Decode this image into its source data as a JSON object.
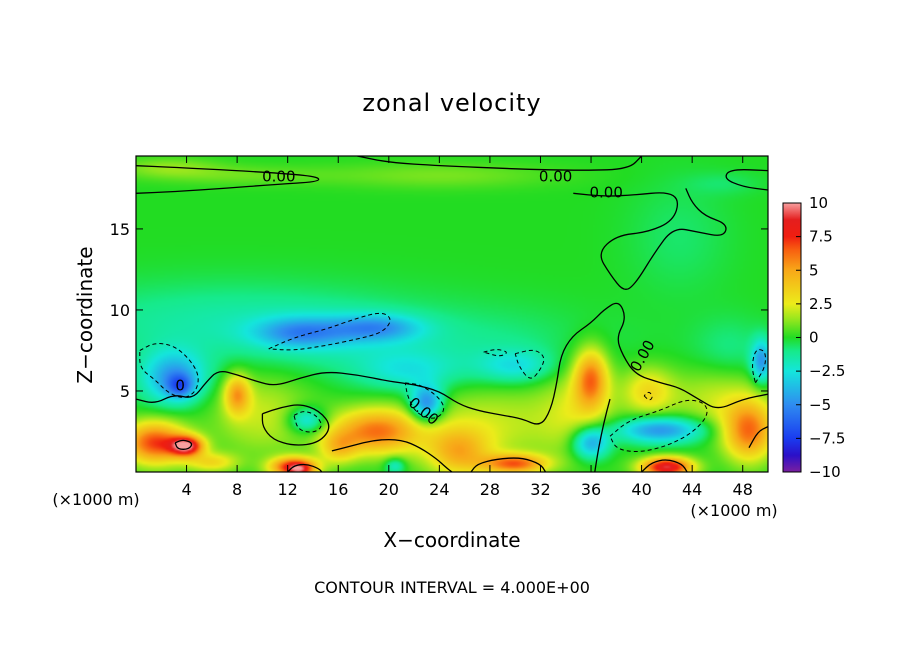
{
  "chart_data": {
    "type": "heatmap",
    "subtype": "filled-contour",
    "title": "zonal velocity",
    "xlabel": "X−coordinate",
    "ylabel": "Z−coordinate",
    "x_unit_left": "(×1000 m)",
    "x_unit_right": "(×1000 m)",
    "xlim": [
      0,
      50
    ],
    "ylim": [
      0,
      19.5
    ],
    "xticks": [
      {
        "value": 4,
        "label": "4"
      },
      {
        "value": 8,
        "label": "8"
      },
      {
        "value": 12,
        "label": "12"
      },
      {
        "value": 16,
        "label": "16"
      },
      {
        "value": 20,
        "label": "20"
      },
      {
        "value": 24,
        "label": "24"
      },
      {
        "value": 28,
        "label": "28"
      },
      {
        "value": 32,
        "label": "32"
      },
      {
        "value": 36,
        "label": "36"
      },
      {
        "value": 40,
        "label": "40"
      },
      {
        "value": 44,
        "label": "44"
      },
      {
        "value": 48,
        "label": "48"
      }
    ],
    "yticks": [
      {
        "value": 5,
        "label": "5"
      },
      {
        "value": 10,
        "label": "10"
      },
      {
        "value": 15,
        "label": "15"
      }
    ],
    "colorbar": {
      "range": [
        -10,
        10
      ],
      "ticks": [
        {
          "value": 10,
          "label": "10"
        },
        {
          "value": 7.5,
          "label": "7.5"
        },
        {
          "value": 5,
          "label": "5"
        },
        {
          "value": 2.5,
          "label": "2.5"
        },
        {
          "value": 0,
          "label": "0"
        },
        {
          "value": -2.5,
          "label": "−2.5"
        },
        {
          "value": -5,
          "label": "−5"
        },
        {
          "value": -7.5,
          "label": "−7.5"
        },
        {
          "value": -10,
          "label": "−10"
        }
      ],
      "stops": [
        {
          "value": -10,
          "color": "#7a1fa0"
        },
        {
          "value": -8.75,
          "color": "#2a10c8"
        },
        {
          "value": -7.5,
          "color": "#1a3cf0"
        },
        {
          "value": -5,
          "color": "#2f8cf0"
        },
        {
          "value": -2.5,
          "color": "#14e6dc"
        },
        {
          "value": -1,
          "color": "#16ea8a"
        },
        {
          "value": 0,
          "color": "#22dc22"
        },
        {
          "value": 1.25,
          "color": "#8ee61e"
        },
        {
          "value": 2.5,
          "color": "#ecec1a"
        },
        {
          "value": 5,
          "color": "#f8a818"
        },
        {
          "value": 6.5,
          "color": "#f86010"
        },
        {
          "value": 7.5,
          "color": "#f01e10"
        },
        {
          "value": 8.75,
          "color": "#e41e1e"
        },
        {
          "value": 10,
          "color": "#f8a0a0"
        }
      ]
    },
    "field_features": [
      {
        "x": 2.5,
        "z": 18.8,
        "sx": 4,
        "sz": 0.6,
        "v": 1.2
      },
      {
        "x": 8,
        "z": 18.3,
        "sx": 7,
        "sz": 0.6,
        "v": 0.8
      },
      {
        "x": 24,
        "z": 18.3,
        "sx": 9,
        "sz": 0.8,
        "v": 1
      },
      {
        "x": 43,
        "z": 14.5,
        "sx": 4,
        "sz": 3.5,
        "v": -0.7
      },
      {
        "x": 46.5,
        "z": 17.8,
        "sx": 3,
        "sz": 0.7,
        "v": -0.6
      },
      {
        "x": 3,
        "z": 5.8,
        "sx": 2.5,
        "sz": 1.6,
        "v": -4.5
      },
      {
        "x": 3.5,
        "z": 5.3,
        "sx": 1,
        "sz": 0.7,
        "v": -3.5
      },
      {
        "x": 13,
        "z": 8.6,
        "sx": 3.5,
        "sz": 0.9,
        "v": -3.5
      },
      {
        "x": 19,
        "z": 8.9,
        "sx": 3.5,
        "sz": 0.8,
        "v": -3.5
      },
      {
        "x": 16,
        "z": 8.3,
        "sx": 7,
        "sz": 1.8,
        "v": -1
      },
      {
        "x": 7,
        "z": 9.2,
        "sx": 14,
        "sz": 2.5,
        "v": -1.5
      },
      {
        "x": 23,
        "z": 4.2,
        "sx": 1.3,
        "sz": 1.1,
        "v": -5.5
      },
      {
        "x": 21.5,
        "z": 6.2,
        "sx": 4,
        "sz": 1.2,
        "v": -2
      },
      {
        "x": 30,
        "z": 6.5,
        "sx": 3,
        "sz": 1,
        "v": -2.2
      },
      {
        "x": 28,
        "z": 7.5,
        "sx": 10,
        "sz": 2.5,
        "v": -1
      },
      {
        "x": 13.5,
        "z": 3.2,
        "sx": 1.5,
        "sz": 0.8,
        "v": -3.5
      },
      {
        "x": 41.5,
        "z": 2.6,
        "sx": 3.5,
        "sz": 0.8,
        "v": -5
      },
      {
        "x": 36,
        "z": 1.8,
        "sx": 1.5,
        "sz": 1,
        "v": -5
      },
      {
        "x": 49.5,
        "z": 6.8,
        "sx": 0.8,
        "sz": 1.3,
        "v": -4.5
      },
      {
        "x": 47,
        "z": 7.5,
        "sx": 3,
        "sz": 2,
        "v": -1
      },
      {
        "x": 20.5,
        "z": 0.4,
        "sx": 0.8,
        "sz": 0.5,
        "v": -2.5
      },
      {
        "x": 1.5,
        "z": 1.8,
        "sx": 2.5,
        "sz": 1.3,
        "v": 7
      },
      {
        "x": 4,
        "z": 1.6,
        "sx": 1.3,
        "sz": 0.6,
        "v": 8.5
      },
      {
        "x": 6,
        "z": 0.6,
        "sx": 2,
        "sz": 0.6,
        "v": 3
      },
      {
        "x": 8,
        "z": 4.8,
        "sx": 1,
        "sz": 1.2,
        "v": 4.5
      },
      {
        "x": 12.5,
        "z": 0.3,
        "sx": 1.8,
        "sz": 0.6,
        "v": 8
      },
      {
        "x": 13,
        "z": 0.1,
        "sx": 0.9,
        "sz": 0.4,
        "v": 3
      },
      {
        "x": 19,
        "z": 2.5,
        "sx": 3.5,
        "sz": 1.4,
        "v": 6
      },
      {
        "x": 16,
        "z": 1.5,
        "sx": 1.5,
        "sz": 1,
        "v": 3
      },
      {
        "x": 25.5,
        "z": 1.2,
        "sx": 2.5,
        "sz": 1.5,
        "v": 4
      },
      {
        "x": 30,
        "z": 0.5,
        "sx": 2.5,
        "sz": 0.6,
        "v": 6
      },
      {
        "x": 36,
        "z": 5.8,
        "sx": 1.3,
        "sz": 1.8,
        "v": 5.5
      },
      {
        "x": 35,
        "z": 4,
        "sx": 3,
        "sz": 3,
        "v": 2
      },
      {
        "x": 42,
        "z": 0.3,
        "sx": 2,
        "sz": 0.6,
        "v": 9
      },
      {
        "x": 48.5,
        "z": 2.5,
        "sx": 2,
        "sz": 1.8,
        "v": 6
      },
      {
        "x": 40.5,
        "z": 5,
        "sx": 2,
        "sz": 1.5,
        "v": 3
      },
      {
        "x": 46,
        "z": 4.5,
        "sx": 4,
        "sz": 2,
        "v": 2
      },
      {
        "x": 10,
        "z": 3.5,
        "sx": 4,
        "sz": 2.5,
        "v": 2
      },
      {
        "x": 28,
        "z": 3,
        "sx": 6,
        "sz": 2.5,
        "v": 2
      }
    ],
    "contour_labels": [
      {
        "x": 11.3,
        "z": 18.3,
        "text": "0.00",
        "angle": 0
      },
      {
        "x": 33.2,
        "z": 18.3,
        "text": "0.00",
        "angle": 0
      },
      {
        "x": 37.2,
        "z": 17.3,
        "text": "0.00",
        "angle": 0
      },
      {
        "x": 40,
        "z": 7.2,
        "text": "0.00",
        "angle": -60
      },
      {
        "x": 22.8,
        "z": 3.8,
        "text": "0.00",
        "angle": 40
      },
      {
        "x": 3.5,
        "z": 5.4,
        "text": "0",
        "angle": 0
      }
    ],
    "zero_contours": [
      [
        [
          0,
          18.9
        ],
        [
          3,
          18.8
        ],
        [
          8,
          18.6
        ],
        [
          12,
          18.4
        ],
        [
          14.5,
          18.2
        ],
        [
          14.4,
          17.9
        ],
        [
          11,
          17.75
        ],
        [
          7,
          17.5
        ],
        [
          3,
          17.3
        ],
        [
          0,
          17.2
        ]
      ],
      [
        [
          17.5,
          19.5
        ],
        [
          20,
          19.1
        ],
        [
          24,
          18.9
        ],
        [
          30,
          18.7
        ],
        [
          35.5,
          18.6
        ],
        [
          39,
          18.7
        ],
        [
          40,
          19.5
        ]
      ],
      [
        [
          50,
          18.6
        ],
        [
          47,
          18.7
        ],
        [
          46.5,
          18.1
        ],
        [
          48,
          17.6
        ],
        [
          50,
          17.4
        ]
      ],
      [
        [
          34.6,
          17.2
        ],
        [
          37,
          17
        ],
        [
          39.5,
          17.1
        ],
        [
          42,
          17.3
        ],
        [
          43,
          16.8
        ],
        [
          42.5,
          15.5
        ],
        [
          40.5,
          14.8
        ],
        [
          38,
          14.6
        ],
        [
          36.5,
          13.5
        ],
        [
          37.5,
          12.2
        ],
        [
          38.6,
          11.1
        ],
        [
          39.5,
          11.6
        ],
        [
          41,
          13.5
        ],
        [
          42.5,
          15.1
        ],
        [
          44.5,
          14.8
        ],
        [
          46.5,
          14.5
        ],
        [
          46.8,
          15.3
        ],
        [
          45,
          15.8
        ],
        [
          44,
          16.6
        ],
        [
          43.5,
          17.5
        ]
      ],
      [
        [
          0,
          4.5
        ],
        [
          1.5,
          4.2
        ],
        [
          3,
          4.8
        ],
        [
          4.5,
          4.5
        ],
        [
          5.5,
          5.5
        ],
        [
          6.5,
          6.3
        ],
        [
          8,
          6
        ],
        [
          9.5,
          5.6
        ],
        [
          11,
          5.3
        ],
        [
          13,
          5.8
        ],
        [
          15,
          6.2
        ],
        [
          17.5,
          6
        ],
        [
          20,
          5.6
        ],
        [
          22,
          5.4
        ],
        [
          24,
          5
        ],
        [
          25.5,
          4.2
        ],
        [
          27,
          3.8
        ],
        [
          29,
          3.5
        ],
        [
          30.5,
          3.3
        ],
        [
          32,
          2.8
        ],
        [
          32.8,
          3.8
        ],
        [
          33.3,
          5.5
        ],
        [
          33.6,
          7.2
        ],
        [
          34.5,
          8.4
        ],
        [
          36,
          9.2
        ],
        [
          37,
          10
        ],
        [
          38.2,
          10.6
        ],
        [
          38.8,
          9.5
        ],
        [
          38,
          8.3
        ],
        [
          38.5,
          7.2
        ],
        [
          39.5,
          6
        ],
        [
          41.5,
          5.5
        ],
        [
          43,
          5.2
        ],
        [
          44.5,
          4.5
        ],
        [
          46,
          3.8
        ],
        [
          48,
          4.5
        ],
        [
          50,
          4.8
        ]
      ],
      [
        [
          10,
          3.6
        ],
        [
          11.5,
          4
        ],
        [
          13,
          4.2
        ],
        [
          14.5,
          3.8
        ],
        [
          15.5,
          2.8
        ],
        [
          14.5,
          1.8
        ],
        [
          12.5,
          1.6
        ],
        [
          10.8,
          2
        ],
        [
          10,
          2.8
        ],
        [
          10,
          3.6
        ]
      ],
      [
        [
          3.1,
          1.8
        ],
        [
          3.7,
          2
        ],
        [
          4.5,
          1.8
        ],
        [
          4.2,
          1.4
        ],
        [
          3.3,
          1.4
        ],
        [
          3.1,
          1.8
        ]
      ],
      [
        [
          12,
          0
        ],
        [
          12.5,
          0.4
        ],
        [
          13.5,
          0.5
        ],
        [
          14.5,
          0.2
        ],
        [
          14.7,
          0
        ]
      ],
      [
        [
          40,
          0
        ],
        [
          40.8,
          0.6
        ],
        [
          42,
          0.8
        ],
        [
          43.2,
          0.5
        ],
        [
          43.6,
          0
        ]
      ],
      [
        [
          15.5,
          1.3
        ],
        [
          17,
          1.6
        ],
        [
          19,
          2
        ],
        [
          21,
          2
        ],
        [
          22.5,
          1.5
        ],
        [
          23.8,
          0.8
        ],
        [
          24.5,
          0.3
        ],
        [
          25,
          0
        ]
      ],
      [
        [
          26.5,
          0
        ],
        [
          27,
          0.5
        ],
        [
          28.5,
          0.8
        ],
        [
          30.5,
          0.9
        ],
        [
          32,
          0.5
        ],
        [
          32.4,
          0
        ]
      ],
      [
        [
          48.5,
          1.5
        ],
        [
          49.2,
          2.5
        ],
        [
          50,
          2.8
        ]
      ],
      [
        [
          36.3,
          0
        ],
        [
          36.6,
          1.5
        ],
        [
          37,
          3
        ],
        [
          37.5,
          4.5
        ]
      ]
    ],
    "dashed_contours": [
      [
        [
          0.3,
          7.5
        ],
        [
          1.5,
          8
        ],
        [
          3,
          7.8
        ],
        [
          4.2,
          7
        ],
        [
          5,
          6
        ],
        [
          4.8,
          5
        ],
        [
          3.8,
          4.5
        ],
        [
          2.5,
          4.9
        ],
        [
          1.5,
          5.7
        ],
        [
          0.3,
          6.4
        ],
        [
          0.3,
          7.5
        ]
      ],
      [
        [
          10.5,
          7.6
        ],
        [
          12.5,
          8.3
        ],
        [
          15,
          8.8
        ],
        [
          17.5,
          9.5
        ],
        [
          19.5,
          9.9
        ],
        [
          20.3,
          9.4
        ],
        [
          19.5,
          8.6
        ],
        [
          17.5,
          8.2
        ],
        [
          15,
          7.8
        ],
        [
          12.5,
          7.5
        ],
        [
          10.5,
          7.6
        ]
      ],
      [
        [
          21.3,
          5.5
        ],
        [
          22.5,
          5.4
        ],
        [
          24,
          4.6
        ],
        [
          24.5,
          3.8
        ],
        [
          23.6,
          3.2
        ],
        [
          22.2,
          3.6
        ],
        [
          21.5,
          4.6
        ],
        [
          21.3,
          5.5
        ]
      ],
      [
        [
          27.5,
          7.4
        ],
        [
          28.5,
          7.6
        ],
        [
          29.5,
          7.4
        ],
        [
          28.8,
          7.1
        ],
        [
          27.5,
          7.4
        ]
      ],
      [
        [
          30,
          7.3
        ],
        [
          31.5,
          7.6
        ],
        [
          32.4,
          7.1
        ],
        [
          32,
          6.3
        ],
        [
          31.2,
          5.6
        ],
        [
          30.3,
          6.5
        ],
        [
          30,
          7.3
        ]
      ],
      [
        [
          12.5,
          3.5
        ],
        [
          13.3,
          3.8
        ],
        [
          14.3,
          3.5
        ],
        [
          14.8,
          2.8
        ],
        [
          14,
          2.4
        ],
        [
          12.8,
          2.6
        ],
        [
          12.5,
          3.5
        ]
      ],
      [
        [
          37.5,
          2.2
        ],
        [
          39,
          3.2
        ],
        [
          41.5,
          3.8
        ],
        [
          43.5,
          4.5
        ],
        [
          45,
          4.3
        ],
        [
          45.3,
          3.5
        ],
        [
          44,
          2.4
        ],
        [
          42,
          1.6
        ],
        [
          39.8,
          1.2
        ],
        [
          38,
          1.4
        ],
        [
          37.5,
          2.2
        ]
      ],
      [
        [
          49,
          5.5
        ],
        [
          49.8,
          6.5
        ],
        [
          49.8,
          7.5
        ],
        [
          49,
          7.6
        ],
        [
          48.7,
          6.5
        ],
        [
          49,
          5.5
        ]
      ],
      [
        [
          40.2,
          4.7
        ],
        [
          40.6,
          4.4
        ],
        [
          40.9,
          4.6
        ],
        [
          40.6,
          5
        ],
        [
          40.2,
          4.7
        ]
      ]
    ],
    "footnote": "CONTOUR INTERVAL = 4.000E+00"
  }
}
